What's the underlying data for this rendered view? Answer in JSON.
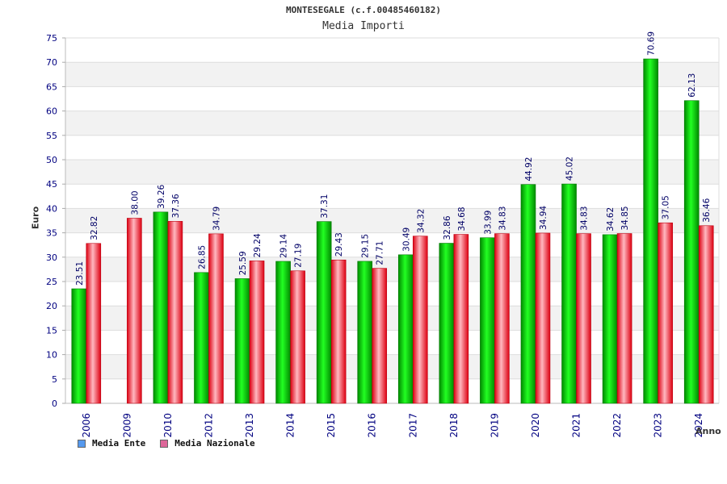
{
  "chart_data": {
    "type": "bar",
    "title": "MONTESEGALE (c.f.00485460182)",
    "subtitle": "Media Importi",
    "xlabel": "Anno",
    "ylabel": "Euro",
    "ylim": [
      0,
      75
    ],
    "yticks": [
      0,
      5,
      10,
      15,
      20,
      25,
      30,
      35,
      40,
      45,
      50,
      55,
      60,
      65,
      70,
      75
    ],
    "categories": [
      "2006",
      "2009",
      "2010",
      "2012",
      "2013",
      "2014",
      "2015",
      "2016",
      "2017",
      "2018",
      "2019",
      "2020",
      "2021",
      "2022",
      "2023",
      "2024"
    ],
    "series": [
      {
        "name": "Media Ente",
        "color": "#00cc00",
        "values": [
          23.51,
          null,
          39.26,
          26.85,
          25.59,
          29.14,
          37.31,
          29.15,
          30.49,
          32.86,
          33.99,
          44.92,
          45.02,
          34.62,
          70.69,
          62.13
        ],
        "labels": [
          "23.51",
          "",
          "39.26",
          "26.85",
          "25.59",
          "29.14",
          "37.31",
          "29.15",
          "30.49",
          "32.86",
          "33.99",
          "44.92",
          "45.02",
          "34.62",
          "70.69",
          "62.13"
        ]
      },
      {
        "name": "Media Nazionale",
        "color": "#ee2233",
        "values": [
          32.82,
          38.0,
          37.36,
          34.79,
          29.24,
          27.19,
          29.43,
          27.71,
          34.32,
          34.68,
          34.83,
          34.94,
          34.83,
          34.85,
          37.05,
          36.46
        ],
        "labels": [
          "32.82",
          "38.00",
          "37.36",
          "34.79",
          "29.24",
          "27.19",
          "29.43",
          "27.71",
          "34.32",
          "34.68",
          "34.83",
          "34.94",
          "34.83",
          "34.85",
          "37.05",
          "36.46"
        ]
      }
    ],
    "legend": [
      {
        "label": "Media Ente",
        "color": "#5599ee"
      },
      {
        "label": "Media Nazionale",
        "color": "#dd6699"
      }
    ],
    "grid": true,
    "legend_position": "bottom-left"
  }
}
